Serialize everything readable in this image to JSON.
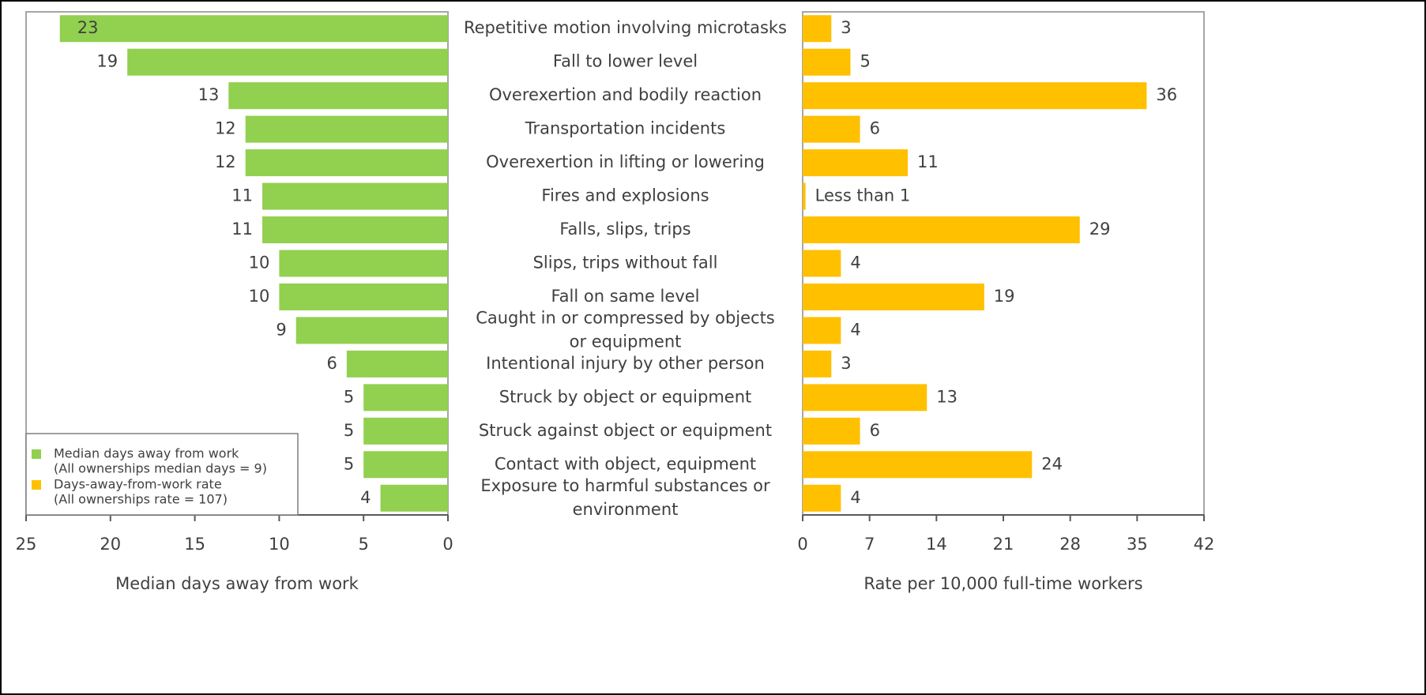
{
  "chart_data": {
    "type": "butterfly",
    "categories": [
      "Repetitive motion involving microtasks",
      "Fall to lower level",
      "Overexertion and bodily reaction",
      "Transportation incidents",
      "Overexertion in lifting or lowering",
      "Fires and explosions",
      "Falls, slips, trips",
      "Slips, trips without fall",
      "Fall on same level",
      "Caught in or compressed by objects or equipment",
      "Intentional injury by other person",
      "Struck by object or equipment",
      "Struck against object or equipment",
      "Contact with object, equipment",
      "Exposure to harmful substances or environment"
    ],
    "series": [
      {
        "name": "Median days away from work",
        "note": "(All ownerships median days = 9)",
        "color": "#92d050",
        "values": [
          23,
          19,
          13,
          12,
          12,
          11,
          11,
          10,
          10,
          9,
          6,
          5,
          5,
          5,
          4
        ],
        "xlim": [
          25,
          0
        ],
        "xticks": [
          25,
          20,
          15,
          10,
          5,
          0
        ],
        "xlabel": "Median days away from work"
      },
      {
        "name": "Days-away-from-work rate",
        "note": "(All ownerships rate = 107)",
        "color": "#ffc000",
        "values": [
          3,
          5,
          36,
          6,
          11,
          0.3,
          29,
          4,
          19,
          4,
          3,
          13,
          6,
          24,
          4
        ],
        "value_labels": [
          null,
          null,
          null,
          null,
          null,
          "Less than 1",
          null,
          null,
          null,
          null,
          null,
          null,
          null,
          null,
          null
        ],
        "xlim": [
          0,
          42
        ],
        "xticks": [
          0,
          7,
          14,
          21,
          28,
          35,
          42
        ],
        "xlabel": "Rate per 10,000 full-time workers"
      }
    ],
    "legend": "lower left"
  }
}
